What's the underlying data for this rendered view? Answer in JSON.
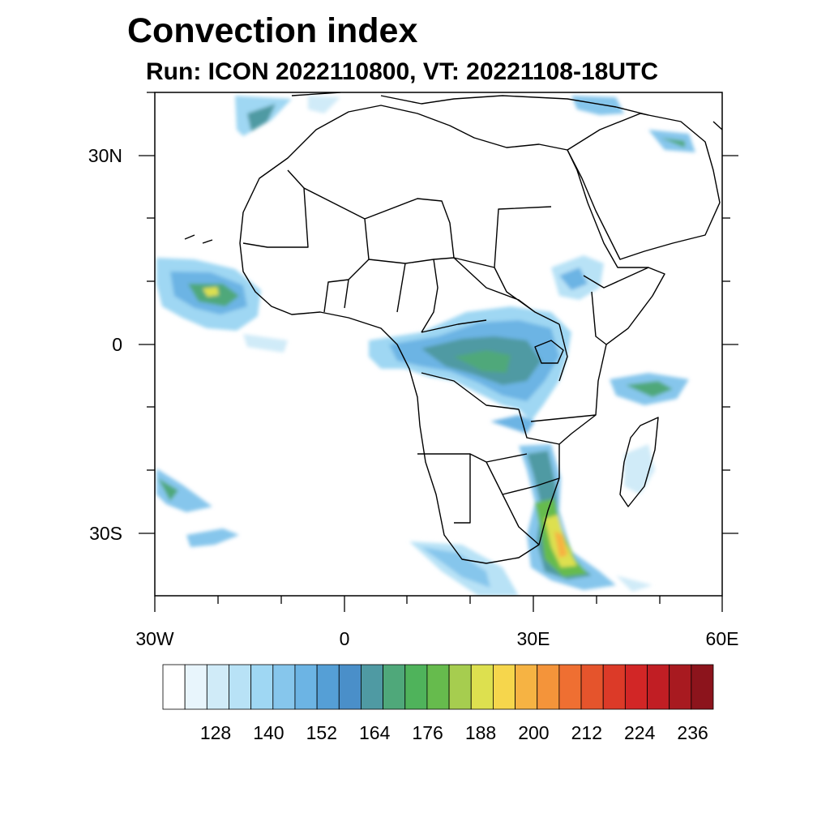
{
  "title": "Convection index",
  "subtitle": "Run: ICON 2022110800,  VT: 20221108-18UTC",
  "map": {
    "region": "Africa",
    "lon_range": [
      -30,
      60
    ],
    "lat_range": [
      -40,
      40
    ],
    "lat_tick_labels": [
      "30N",
      "0",
      "30S"
    ],
    "lon_tick_labels": [
      "30W",
      "0",
      "30E",
      "60E"
    ],
    "land_color": "#ffffff",
    "boundary_color": "#000000"
  },
  "colorbar": {
    "labels": [
      "128",
      "140",
      "152",
      "164",
      "176",
      "188",
      "200",
      "212",
      "224",
      "236"
    ],
    "colors": [
      "#ffffff",
      "#e8f5fc",
      "#d0ebf8",
      "#b8e2f6",
      "#9fd7f3",
      "#86c6ec",
      "#6cb4e4",
      "#559fd6",
      "#4a8fc9",
      "#4f9aa3",
      "#4fa87a",
      "#4fb35b",
      "#66bb4d",
      "#a6cd4f",
      "#dde04f",
      "#f6d64c",
      "#f6b343",
      "#f4943a",
      "#ef6f32",
      "#e5542c",
      "#dc3a28",
      "#d22626",
      "#c11e24",
      "#a81a20",
      "#8c141c"
    ]
  }
}
